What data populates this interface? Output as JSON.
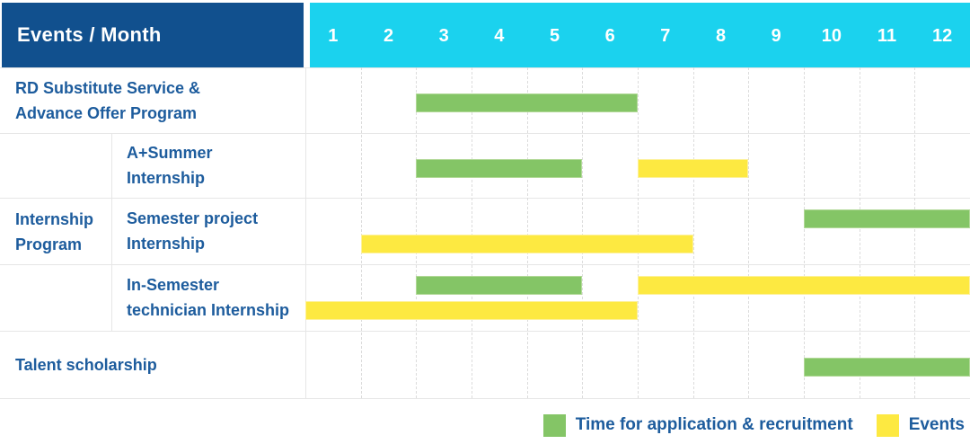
{
  "header": {
    "title": "Events / Month",
    "months": [
      "1",
      "2",
      "3",
      "4",
      "5",
      "6",
      "7",
      "8",
      "9",
      "10",
      "11",
      "12"
    ]
  },
  "colors": {
    "header_bg": "#11508e",
    "months_bg": "#1bd2ee",
    "label_text": "#1d5c9d",
    "bar_green": "#84c566",
    "bar_green_border": "#b2d998",
    "bar_yellow": "#fde941",
    "bar_yellow_border": "#fdf19c",
    "grid": "#e6e6e6"
  },
  "legend": {
    "items": [
      {
        "series": "application",
        "label": "Time for application & recruitment",
        "color": "#84c566"
      },
      {
        "series": "events",
        "label": "Events",
        "color": "#fde941"
      }
    ]
  },
  "chart_data": {
    "type": "bar",
    "subtype": "gantt",
    "title": "Events / Month",
    "x_axis": {
      "label": "Month",
      "ticks": [
        1,
        2,
        3,
        4,
        5,
        6,
        7,
        8,
        9,
        10,
        11,
        12
      ]
    },
    "series_legend": {
      "application": "Time for application & recruitment",
      "events": "Events"
    },
    "groups": [
      {
        "name": "Internship Program",
        "lines": [
          "Internship",
          "Program"
        ],
        "covers_rows": [
          1,
          2,
          3
        ]
      }
    ],
    "rows": [
      {
        "label": "RD Substitute Service & Advance Offer Program",
        "lines": [
          "RD Substitute Service &",
          "Advance Offer Program"
        ],
        "group": null,
        "bars": [
          {
            "series": "application",
            "start_month": 3,
            "end_month": 6,
            "lane": "center"
          }
        ]
      },
      {
        "label": "A+Summer Internship",
        "lines": [
          "A+Summer",
          "Internship"
        ],
        "group": "Internship Program",
        "bars": [
          {
            "series": "application",
            "start_month": 3,
            "end_month": 5,
            "lane": "center"
          },
          {
            "series": "events",
            "start_month": 7,
            "end_month": 8,
            "lane": "center"
          }
        ]
      },
      {
        "label": "Semester project Internship",
        "lines": [
          "Semester project",
          "Internship"
        ],
        "group": "Internship Program",
        "bars": [
          {
            "series": "application",
            "start_month": 10,
            "end_month": 12,
            "lane": "top"
          },
          {
            "series": "events",
            "start_month": 2,
            "end_month": 7,
            "lane": "bottom"
          }
        ]
      },
      {
        "label": "In-Semester technician Internship",
        "lines": [
          "In-Semester",
          "technician Internship"
        ],
        "group": "Internship Program",
        "bars": [
          {
            "series": "application",
            "start_month": 3,
            "end_month": 5,
            "lane": "top"
          },
          {
            "series": "events",
            "start_month": 7,
            "end_month": 12,
            "lane": "top"
          },
          {
            "series": "events",
            "start_month": 1,
            "end_month": 6,
            "lane": "bottom"
          }
        ]
      },
      {
        "label": "Talent scholarship",
        "lines": [
          "Talent scholarship"
        ],
        "group": null,
        "bars": [
          {
            "series": "application",
            "start_month": 10,
            "end_month": 12,
            "lane": "center"
          }
        ]
      }
    ]
  }
}
